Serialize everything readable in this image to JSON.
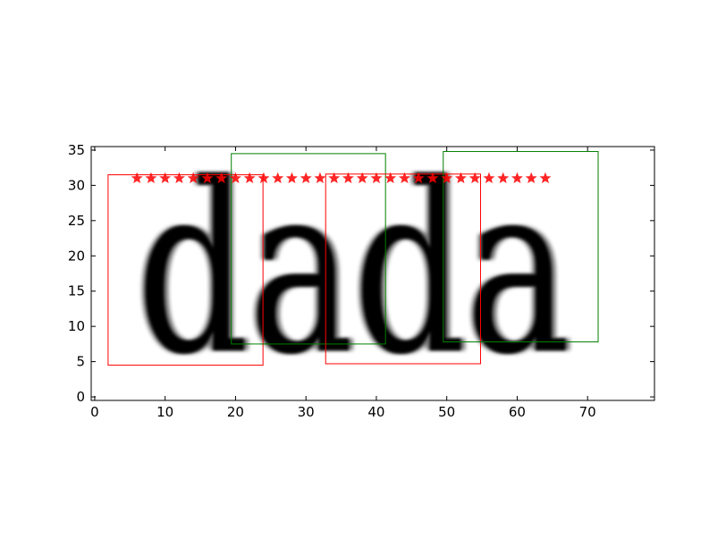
{
  "chart_data": {
    "type": "scatter",
    "title": "",
    "xlabel": "",
    "ylabel": "",
    "xlim": [
      -0.5,
      79.5
    ],
    "ylim": [
      35.5,
      -0.5
    ],
    "y_inverted": true,
    "grid": false,
    "xticks": [
      0,
      10,
      20,
      30,
      40,
      50,
      60,
      70
    ],
    "yticks": [
      0,
      5,
      10,
      15,
      20,
      25,
      30,
      35
    ],
    "background_image_text": "dada",
    "series": [
      {
        "marker": "star",
        "color": "#ff0000",
        "x": [
          6,
          8,
          10,
          12,
          14,
          16,
          18,
          20,
          22,
          24,
          26,
          28,
          30,
          32,
          34,
          36,
          38,
          40,
          42,
          44,
          46,
          48,
          50,
          52,
          54,
          56,
          58,
          60,
          62,
          64
        ],
        "y": [
          31,
          31,
          31,
          31,
          31,
          31,
          31,
          31,
          31,
          31,
          31,
          31,
          31,
          31,
          31,
          31,
          31,
          31,
          31,
          31,
          31,
          31,
          31,
          31,
          31,
          31,
          31,
          31,
          31,
          31
        ]
      }
    ],
    "boxes": [
      {
        "color": "#ff0000",
        "x0": 1.9,
        "x1": 23.9,
        "y0": 4.5,
        "y1": 31.5
      },
      {
        "color": "#008000",
        "x0": 19.4,
        "x1": 41.3,
        "y0": 7.5,
        "y1": 34.5
      },
      {
        "color": "#ff0000",
        "x0": 32.8,
        "x1": 54.8,
        "y0": 4.7,
        "y1": 31.6
      },
      {
        "color": "#008000",
        "x0": 49.5,
        "x1": 71.5,
        "y0": 7.8,
        "y1": 34.8
      }
    ]
  }
}
